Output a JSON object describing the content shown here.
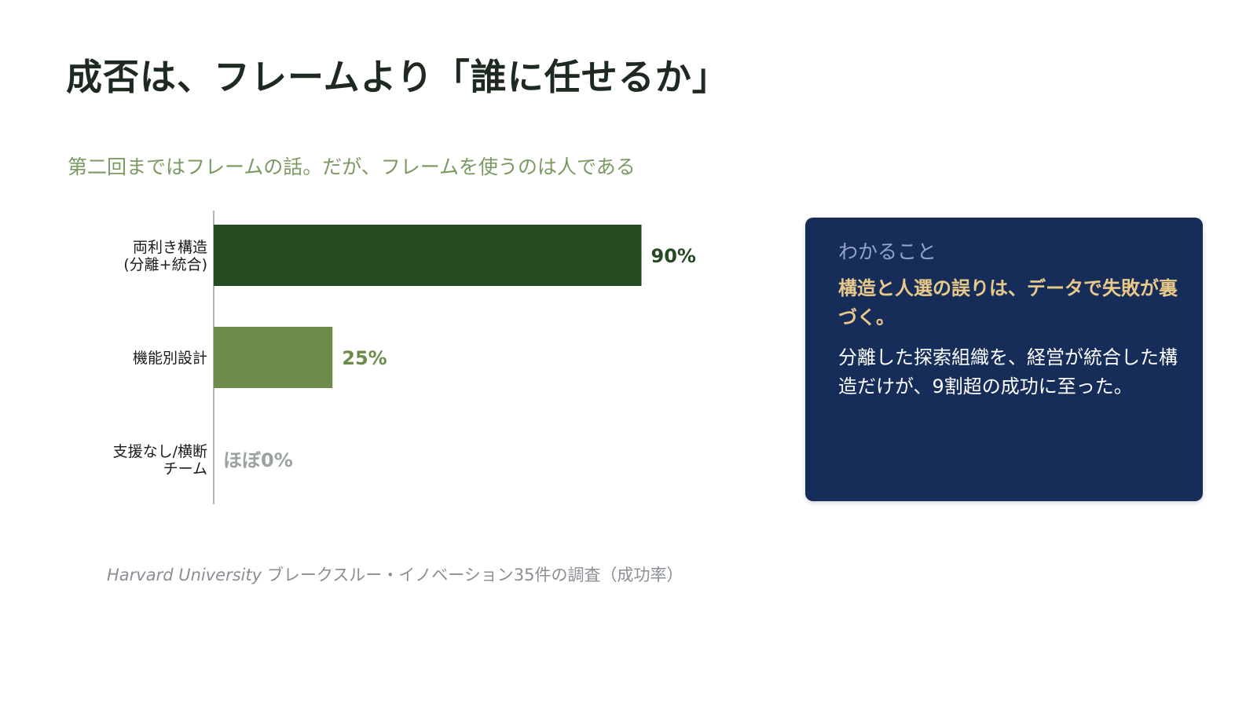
{
  "title": "成否は、フレームより「誰に任せるか」",
  "subtitle": "第二回まではフレームの話。だが、フレームを使うのは人である",
  "chart_data": {
    "type": "bar",
    "orientation": "horizontal",
    "categories": [
      [
        "両利き構造",
        "(分離+統合)"
      ],
      [
        "機能別設計"
      ],
      [
        "支援なし/横断",
        "チーム"
      ]
    ],
    "values": [
      90,
      25,
      0
    ],
    "value_labels": [
      "90%",
      "25%",
      "ほぼ0%"
    ],
    "colors": [
      "#264a22",
      "#6d8b4a",
      "#9aa39d"
    ],
    "xlim": [
      0,
      100
    ],
    "grid": false,
    "legend": "none"
  },
  "source": {
    "italic": "Harvard University",
    "text": " ブレークスルー・イノベーション35件の調査（成功率）"
  },
  "card": {
    "label": "わかること",
    "headline": "構造と人選の誤りは、データで失敗が裏づく。",
    "body": "分離した探索組織を、経営が統合した構造だけが、9割超の成功に至った。"
  }
}
